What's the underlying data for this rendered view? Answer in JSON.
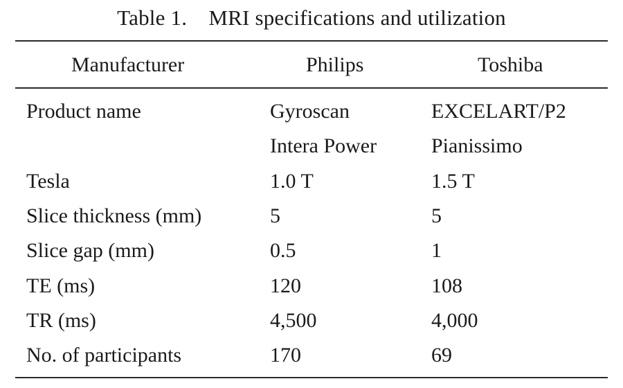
{
  "table": {
    "title": "Table 1. MRI specifications and utilization",
    "columns": [
      "Manufacturer",
      "Philips",
      "Toshiba"
    ],
    "rows": [
      {
        "label": "Product name",
        "philips": "Gyroscan",
        "toshiba": "EXCELART/P2"
      },
      {
        "label": "",
        "philips": "Intera Power",
        "toshiba": "Pianissimo"
      },
      {
        "label": "Tesla",
        "philips": "1.0 T",
        "toshiba": "1.5 T"
      },
      {
        "label": "Slice thickness (mm)",
        "philips": "5",
        "toshiba": "5"
      },
      {
        "label": "Slice gap (mm)",
        "philips": "0.5",
        "toshiba": "1"
      },
      {
        "label": "TE (ms)",
        "philips": "120",
        "toshiba": "108"
      },
      {
        "label": "TR (ms)",
        "philips": "4,500",
        "toshiba": "4,000"
      },
      {
        "label": "No. of participants",
        "philips": "170",
        "toshiba": "69"
      }
    ]
  }
}
